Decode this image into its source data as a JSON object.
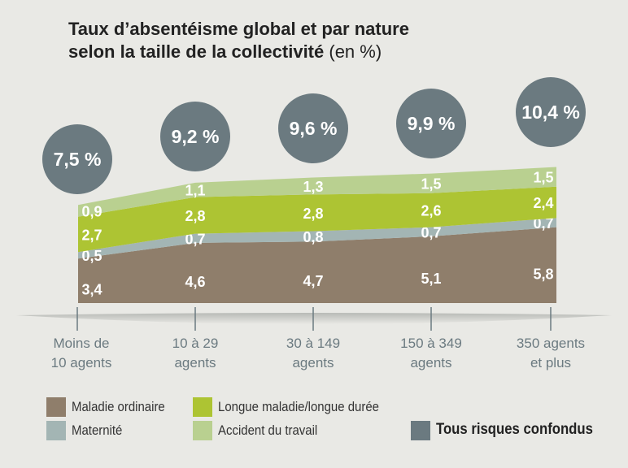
{
  "chart_data": {
    "type": "area",
    "stacked": true,
    "title_line1": "Taux d’absentéisme global et par nature",
    "title_line2": "selon la taille de la collectivité",
    "title_unit": "(en %)",
    "categories": [
      [
        "Moins de",
        "10 agents"
      ],
      [
        "10 à 29",
        "agents"
      ],
      [
        "30 à 149",
        "agents"
      ],
      [
        "150 à 349",
        "agents"
      ],
      [
        "350 agents",
        "et plus"
      ]
    ],
    "series": [
      {
        "name": "Maladie ordinaire",
        "color": "#8f7e6b",
        "values": [
          3.4,
          4.6,
          4.7,
          5.1,
          5.8
        ],
        "labels": [
          "3,4",
          "4,6",
          "4,7",
          "5,1",
          "5,8"
        ]
      },
      {
        "name": "Maternité",
        "color": "#a3b5b4",
        "values": [
          0.5,
          0.7,
          0.8,
          0.7,
          0.7
        ],
        "labels": [
          "0,5",
          "0,7",
          "0,8",
          "0,7",
          "0,7"
        ]
      },
      {
        "name": "Longue maladie/longue durée",
        "color": "#adc433",
        "values": [
          2.7,
          2.8,
          2.8,
          2.6,
          2.4
        ],
        "labels": [
          "2,7",
          "2,8",
          "2,8",
          "2,6",
          "2,4"
        ]
      },
      {
        "name": "Accident du travail",
        "color": "#b9d090",
        "values": [
          0.9,
          1.1,
          1.3,
          1.5,
          1.5
        ],
        "labels": [
          "0,9",
          "1,1",
          "1,3",
          "1,5",
          "1,5"
        ]
      }
    ],
    "totals": {
      "name": "Tous risques confondus",
      "color": "#6b7a80",
      "values": [
        7.5,
        9.2,
        9.6,
        9.9,
        10.4
      ],
      "labels": [
        "7,5 %",
        "9,2 %",
        "9,6 %",
        "9,9 %",
        "10,4 %"
      ]
    },
    "grid": false,
    "legend": "bottom"
  }
}
